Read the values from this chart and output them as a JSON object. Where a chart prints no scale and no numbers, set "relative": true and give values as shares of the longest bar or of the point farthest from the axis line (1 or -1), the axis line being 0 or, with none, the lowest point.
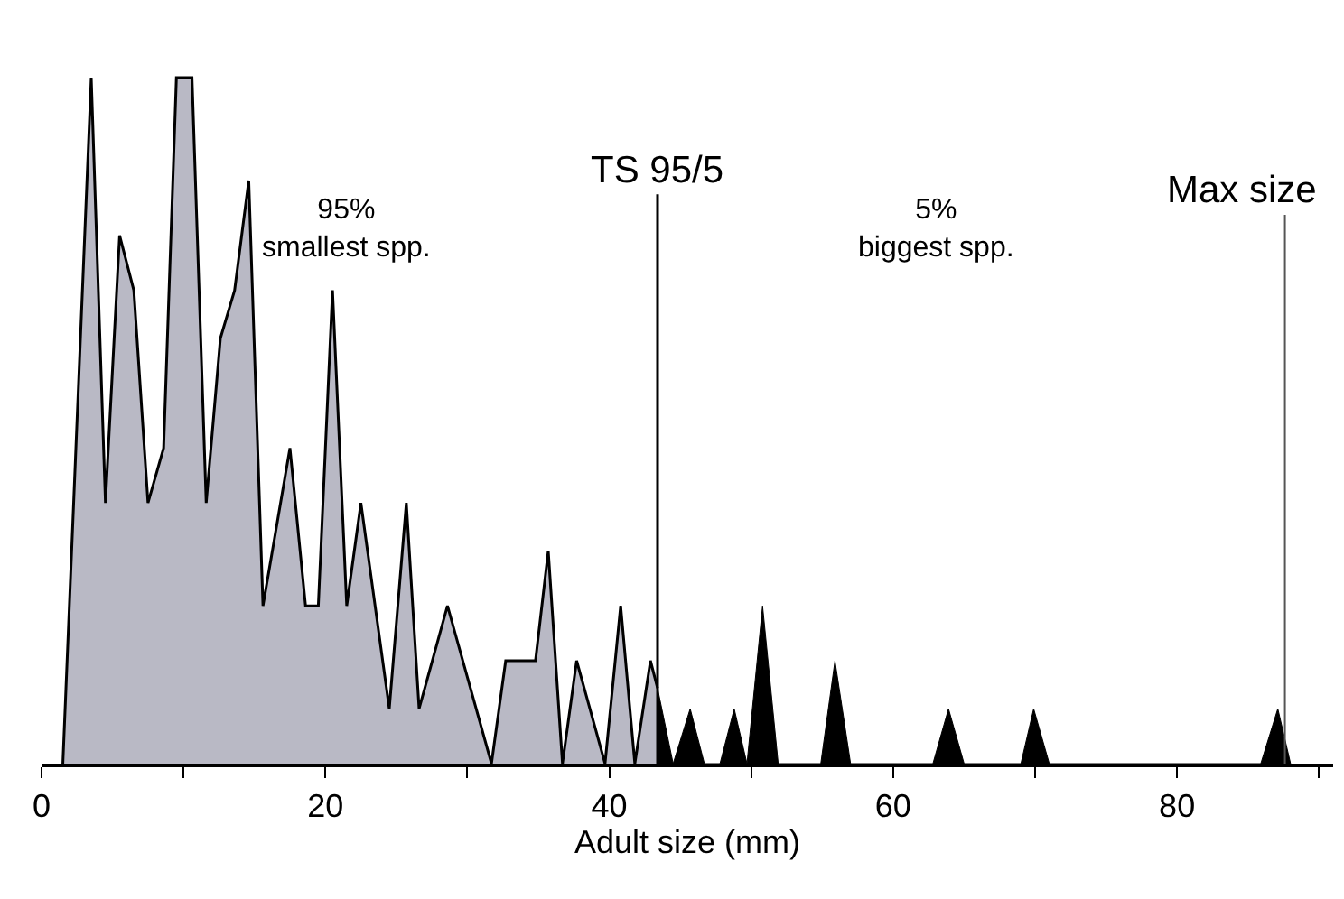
{
  "chart_data": {
    "type": "area",
    "relative": true,
    "xlabel": "Adult size (mm)",
    "xlim": [
      0,
      91
    ],
    "xticks": [
      0,
      {
        "value": 10,
        "label": null
      },
      20,
      {
        "value": 30,
        "label": null
      },
      40,
      {
        "value": 50,
        "label": null
      },
      60,
      {
        "value": 70,
        "label": null
      },
      80,
      {
        "value": 90,
        "label": null
      }
    ],
    "marker": "none",
    "line_style": "solid",
    "series": [
      {
        "color": "#b9b9c5",
        "x": [
          1.5,
          3.5,
          4.5,
          5.5,
          6.5,
          7.5,
          8.6,
          9.5,
          10.6,
          11.6,
          12.6,
          13.6,
          14.6,
          15.6,
          17.5,
          18.6,
          19.5,
          20.5,
          21.5,
          22.5,
          24.5,
          25.7,
          26.6,
          28.6,
          31.7,
          32.7,
          34.8,
          35.7,
          36.7,
          37.7,
          39.7,
          40.8,
          41.8,
          42.9,
          43.4
        ],
        "values": [
          0,
          1,
          0.38,
          0.77,
          0.69,
          0.38,
          0.46,
          1,
          1,
          0.38,
          0.62,
          0.69,
          0.85,
          0.23,
          0.46,
          0.23,
          0.23,
          0.69,
          0.23,
          0.38,
          0.08,
          0.38,
          0.08,
          0.23,
          0,
          0.15,
          0.15,
          0.31,
          0,
          0.15,
          0,
          0.23,
          0,
          0.15,
          0.11
        ]
      },
      {
        "color": "#000000",
        "x": [
          43.4,
          44.5,
          45.7,
          46.7,
          47.8,
          48.8,
          49.7,
          50.8,
          51.9,
          54.9,
          55.9,
          57,
          62.8,
          63.9,
          65,
          69,
          69.9,
          71,
          85.9,
          87.1,
          88
        ],
        "values": [
          0.11,
          0,
          0.08,
          0,
          0,
          0.08,
          0,
          0.23,
          0,
          0,
          0.15,
          0,
          0,
          0.08,
          0,
          0,
          0.08,
          0,
          0,
          0.08,
          0
        ]
      }
    ],
    "ref_lines": [
      {
        "axis": "x",
        "value": 43.4,
        "label": "TS 95/5",
        "color": "#000000"
      },
      {
        "axis": "x",
        "value": 87.6,
        "label": "Max size",
        "color": "#555555"
      }
    ],
    "annotations": [
      "95%\nsmallest spp.",
      "5%\nbiggest spp."
    ]
  }
}
